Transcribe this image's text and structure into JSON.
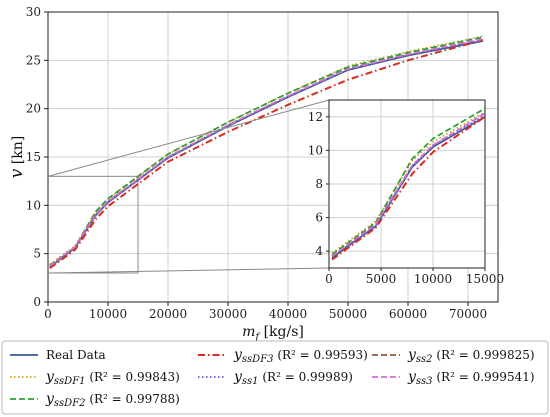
{
  "chart_data": [
    {
      "type": "line",
      "xlabel": "m_f [kg/s]",
      "ylabel": "v [kn]",
      "xlim": [
        0,
        75000
      ],
      "ylim": [
        0,
        30
      ],
      "x_ticks": [
        0,
        10000,
        20000,
        30000,
        40000,
        50000,
        60000,
        70000
      ],
      "y_ticks": [
        0,
        5,
        10,
        15,
        20,
        25,
        30
      ],
      "grid": true,
      "legend_position": "below",
      "legend": [
        "Real Data",
        "y_ssDF1 (R² = 0.99843)",
        "y_ssDF2 (R² = 0.99788)",
        "y_ssDF3 (R² = 0.99593)",
        "y_ss1 (R² = 0.99989)",
        "y_ss2 (R² = 0.999825)",
        "y_ss3 (R² = 0.999541)"
      ],
      "series": [
        {
          "name": "Real Data",
          "color": "#3b5a9a",
          "dash": "solid",
          "x": [
            300,
            4500,
            8000,
            10000,
            20000,
            30000,
            40000,
            50000,
            60000,
            72500
          ],
          "y": [
            3.6,
            5.6,
            9.0,
            10.3,
            14.9,
            18.2,
            21.2,
            24.0,
            25.5,
            27.0
          ]
        },
        {
          "name": "y_ssDF1",
          "color": "#c9a227",
          "dash": "dotted",
          "x": [
            300,
            4500,
            8000,
            10000,
            20000,
            30000,
            40000,
            50000,
            60000,
            72500
          ],
          "y": [
            3.9,
            5.8,
            9.3,
            10.6,
            15.3,
            18.6,
            21.6,
            24.4,
            25.9,
            27.5
          ]
        },
        {
          "name": "y_ssDF2",
          "color": "#2e9e2e",
          "dash": "dashed",
          "x": [
            300,
            4500,
            8000,
            10000,
            20000,
            30000,
            40000,
            50000,
            60000,
            72500
          ],
          "y": [
            3.8,
            5.7,
            9.4,
            10.7,
            15.3,
            18.6,
            21.6,
            24.3,
            25.8,
            27.4
          ]
        },
        {
          "name": "y_ssDF3",
          "color": "#d62d20",
          "dash": "dashdot",
          "x": [
            300,
            4500,
            8000,
            10000,
            20000,
            30000,
            40000,
            50000,
            60000,
            72500
          ],
          "y": [
            3.5,
            5.4,
            8.6,
            9.9,
            14.5,
            17.6,
            20.4,
            23.0,
            25.0,
            27.1
          ]
        },
        {
          "name": "y_ss1",
          "color": "#6a5acd",
          "dash": "dotted",
          "x": [
            300,
            4500,
            8000,
            10000,
            20000,
            30000,
            40000,
            50000,
            60000,
            72500
          ],
          "y": [
            3.7,
            5.6,
            9.1,
            10.4,
            15.0,
            18.3,
            21.3,
            24.1,
            25.6,
            27.1
          ]
        },
        {
          "name": "y_ss2",
          "color": "#8b5a3c",
          "dash": "dashed",
          "x": [
            300,
            4500,
            8000,
            10000,
            20000,
            30000,
            40000,
            50000,
            60000,
            72500
          ],
          "y": [
            3.7,
            5.6,
            9.1,
            10.4,
            15.0,
            18.3,
            21.3,
            24.1,
            25.6,
            27.2
          ]
        },
        {
          "name": "y_ss3",
          "color": "#d86bd8",
          "dash": "dashed",
          "x": [
            300,
            4500,
            8000,
            10000,
            20000,
            30000,
            40000,
            50000,
            60000,
            72500
          ],
          "y": [
            3.7,
            5.7,
            9.1,
            10.4,
            15.0,
            18.3,
            21.3,
            24.1,
            25.6,
            27.2
          ]
        }
      ]
    },
    {
      "type": "line",
      "xlim": [
        0,
        15000
      ],
      "ylim": [
        3,
        13
      ],
      "x_ticks": [
        0,
        5000,
        10000,
        15000
      ],
      "y_ticks": [
        4,
        6,
        8,
        10,
        12
      ],
      "grid": true,
      "series": [
        {
          "name": "Real Data",
          "color": "#3b5a9a",
          "dash": "solid",
          "x": [
            300,
            4500,
            8000,
            10000,
            15000
          ],
          "y": [
            3.6,
            5.5,
            9.0,
            10.2,
            12.0
          ]
        },
        {
          "name": "y_ssDF1",
          "color": "#c9a227",
          "dash": "dotted",
          "x": [
            300,
            4500,
            8000,
            10000,
            15000
          ],
          "y": [
            3.9,
            5.8,
            9.4,
            10.5,
            12.3
          ]
        },
        {
          "name": "y_ssDF2",
          "color": "#2e9e2e",
          "dash": "dashed",
          "x": [
            300,
            4500,
            8000,
            10000,
            15000
          ],
          "y": [
            3.8,
            5.7,
            9.5,
            10.7,
            12.5
          ]
        },
        {
          "name": "y_ssDF3",
          "color": "#d62d20",
          "dash": "dashdot",
          "x": [
            300,
            4500,
            8000,
            10000,
            15000
          ],
          "y": [
            3.5,
            5.4,
            8.6,
            9.9,
            12.0
          ]
        },
        {
          "name": "y_ss1",
          "color": "#6a5acd",
          "dash": "dotted",
          "x": [
            300,
            4500,
            8000,
            10000,
            15000
          ],
          "y": [
            3.7,
            5.5,
            9.1,
            10.3,
            12.1
          ]
        },
        {
          "name": "y_ss2",
          "color": "#8b5a3c",
          "dash": "dashed",
          "x": [
            300,
            4500,
            8000,
            10000,
            15000
          ],
          "y": [
            3.7,
            5.6,
            9.1,
            10.3,
            12.2
          ]
        },
        {
          "name": "y_ss3",
          "color": "#d86bd8",
          "dash": "dashed",
          "x": [
            300,
            4500,
            8000,
            10000,
            15000
          ],
          "y": [
            3.7,
            5.6,
            9.1,
            10.3,
            12.2
          ]
        }
      ]
    }
  ]
}
